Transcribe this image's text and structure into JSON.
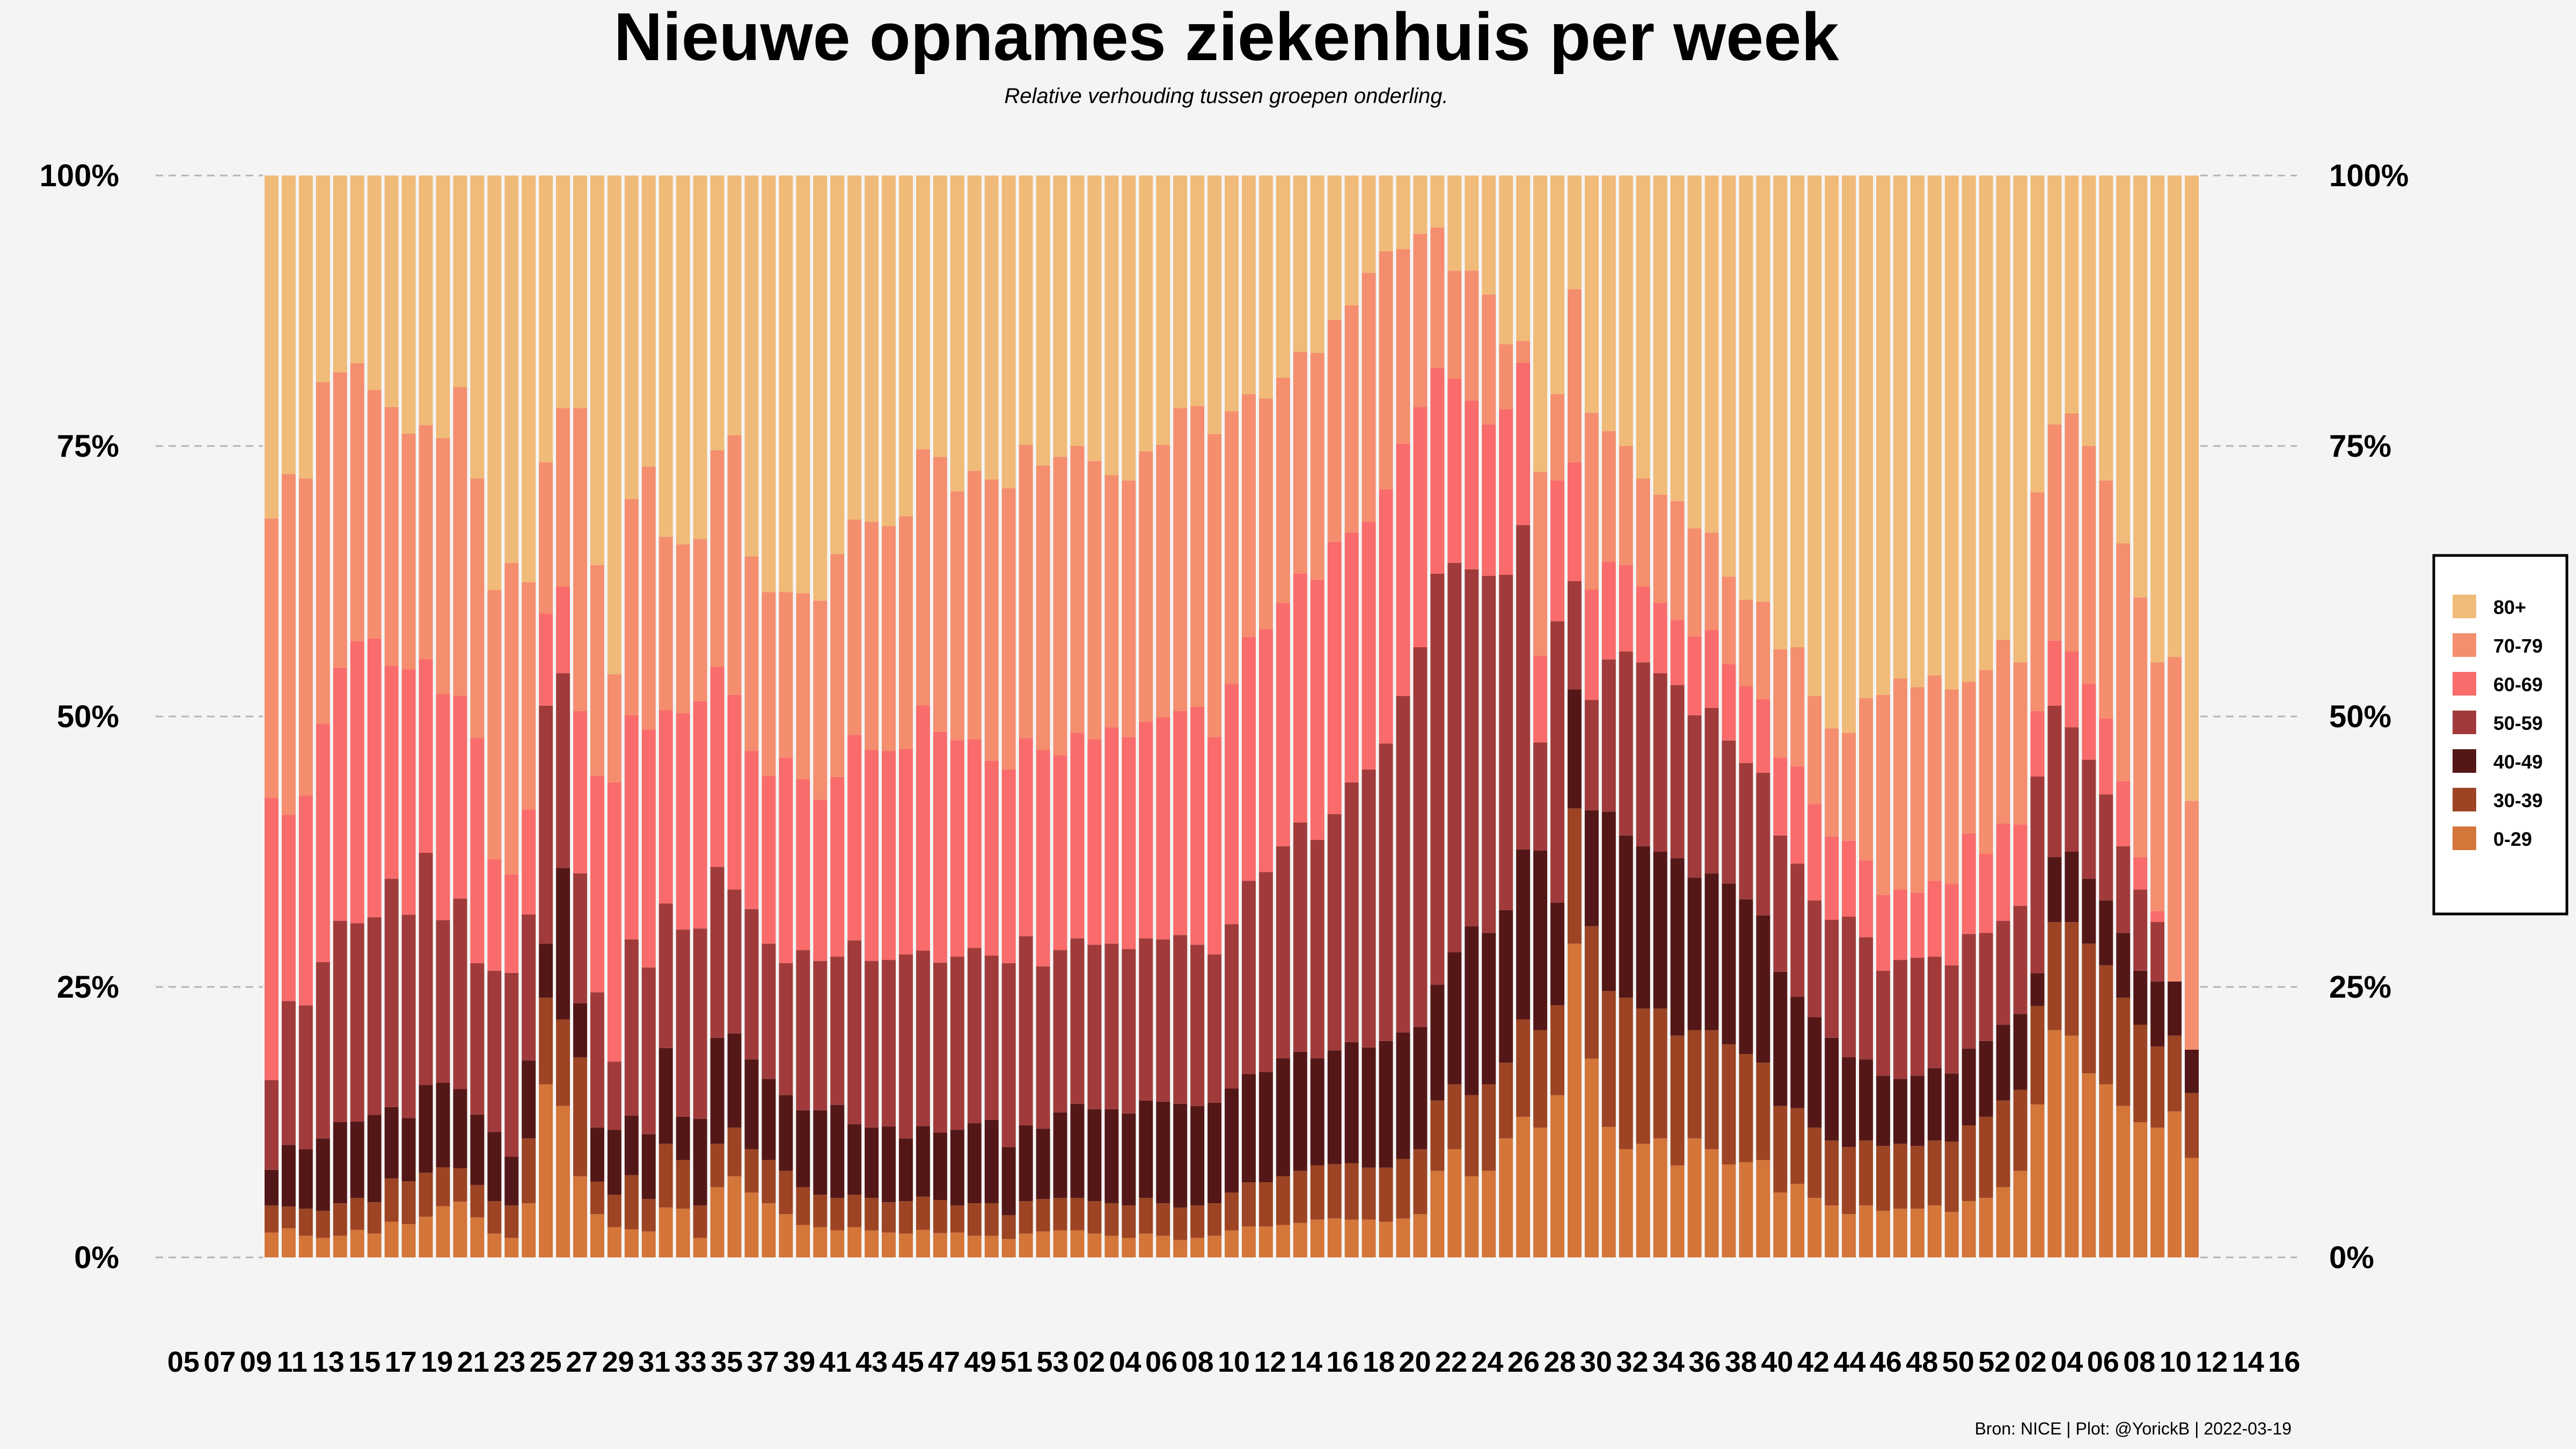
{
  "chart_data": {
    "type": "bar",
    "stacked": true,
    "normalized": true,
    "title": "Nieuwe opnames ziekenhuis per week",
    "subtitle": "Relative verhouding tussen groepen onderling.",
    "caption": "Bron: NICE | Plot: @YorickB |  2022-03-19",
    "ylim": [
      0,
      1
    ],
    "y_ticks": [
      "0%",
      "25%",
      "50%",
      "75%",
      "100%"
    ],
    "y_tick_values": [
      0,
      0.25,
      0.5,
      0.75,
      1.0
    ],
    "legend_position": "right",
    "grid": "horizontal dashed",
    "x_tick_labels": [
      "05",
      "07",
      "09",
      "11",
      "13",
      "15",
      "17",
      "19",
      "21",
      "23",
      "25",
      "27",
      "29",
      "31",
      "33",
      "35",
      "37",
      "39",
      "41",
      "43",
      "45",
      "47",
      "49",
      "51",
      "53",
      "02",
      "04",
      "06",
      "08",
      "10",
      "12",
      "14",
      "16",
      "18",
      "20",
      "22",
      "24",
      "26",
      "28",
      "30",
      "32",
      "34",
      "36",
      "38",
      "40",
      "42",
      "44",
      "46",
      "48",
      "50",
      "52",
      "02",
      "04",
      "06",
      "08",
      "10",
      "12",
      "14",
      "16"
    ],
    "series": [
      {
        "name": "0-29",
        "color": "#d4753a",
        "values": [
          0.023,
          0.027,
          0.02,
          0.018,
          0.02,
          0.026,
          0.023,
          0.033,
          0.031,
          0.037,
          0.046,
          0.05,
          0.037,
          0.022,
          0.018,
          0.05,
          0.16,
          0.14,
          0.075,
          0.04,
          0.028,
          0.026,
          0.024,
          0.047,
          0.045,
          0.018,
          0.065,
          0.075,
          0.06,
          0.05,
          0.04,
          0.03,
          0.028,
          0.025,
          0.028,
          0.025,
          0.023,
          0.022,
          0.025,
          0.022,
          0.023,
          0.02,
          0.02,
          0.017,
          0.022,
          0.024,
          0.025,
          0.025,
          0.022,
          0.02,
          0.018,
          0.022,
          0.02,
          0.016,
          0.018,
          0.02,
          0.025,
          0.028,
          0.028,
          0.03,
          0.032,
          0.035,
          0.036,
          0.035,
          0.035,
          0.033,
          0.036,
          0.04,
          0.08,
          0.1,
          0.075,
          0.08,
          0.11,
          0.13,
          0.12,
          0.15,
          0.29,
          0.18,
          0.12,
          0.1,
          0.105,
          0.11,
          0.085,
          0.11,
          0.1,
          0.085,
          0.088,
          0.09,
          0.06,
          0.068,
          0.055,
          0.048,
          0.04,
          0.048,
          0.043,
          0.045,
          0.045,
          0.048,
          0.042,
          0.052,
          0.055,
          0.065,
          0.08,
          0.14,
          0.21,
          0.205,
          0.17,
          0.16,
          0.14,
          0.125,
          0.12,
          0.135,
          0.092
        ]
      },
      {
        "name": "30-39",
        "color": "#9c4423",
        "values": [
          0.025,
          0.02,
          0.025,
          0.025,
          0.03,
          0.03,
          0.03,
          0.04,
          0.04,
          0.04,
          0.035,
          0.03,
          0.03,
          0.03,
          0.03,
          0.06,
          0.08,
          0.08,
          0.11,
          0.03,
          0.03,
          0.05,
          0.03,
          0.06,
          0.045,
          0.03,
          0.04,
          0.045,
          0.04,
          0.04,
          0.04,
          0.035,
          0.03,
          0.03,
          0.03,
          0.03,
          0.028,
          0.03,
          0.03,
          0.03,
          0.025,
          0.03,
          0.03,
          0.022,
          0.03,
          0.03,
          0.03,
          0.03,
          0.03,
          0.03,
          0.03,
          0.033,
          0.03,
          0.03,
          0.03,
          0.03,
          0.035,
          0.04,
          0.04,
          0.045,
          0.048,
          0.05,
          0.05,
          0.052,
          0.048,
          0.05,
          0.055,
          0.06,
          0.065,
          0.06,
          0.075,
          0.08,
          0.07,
          0.09,
          0.09,
          0.083,
          0.125,
          0.12,
          0.125,
          0.14,
          0.125,
          0.12,
          0.12,
          0.1,
          0.11,
          0.11,
          0.1,
          0.09,
          0.08,
          0.07,
          0.065,
          0.06,
          0.062,
          0.06,
          0.06,
          0.06,
          0.058,
          0.06,
          0.065,
          0.07,
          0.075,
          0.08,
          0.075,
          0.09,
          0.1,
          0.105,
          0.12,
          0.11,
          0.1,
          0.09,
          0.075,
          0.07,
          0.06
        ]
      },
      {
        "name": "40-49",
        "color": "#541717",
        "values": [
          0.033,
          0.057,
          0.055,
          0.067,
          0.075,
          0.072,
          0.084,
          0.066,
          0.059,
          0.08,
          0.076,
          0.071,
          0.065,
          0.064,
          0.045,
          0.072,
          0.05,
          0.14,
          0.05,
          0.05,
          0.06,
          0.055,
          0.06,
          0.09,
          0.04,
          0.08,
          0.098,
          0.087,
          0.083,
          0.075,
          0.07,
          0.071,
          0.078,
          0.086,
          0.065,
          0.065,
          0.07,
          0.058,
          0.064,
          0.061,
          0.07,
          0.074,
          0.077,
          0.063,
          0.07,
          0.065,
          0.079,
          0.087,
          0.085,
          0.087,
          0.085,
          0.09,
          0.094,
          0.096,
          0.092,
          0.093,
          0.096,
          0.098,
          0.1,
          0.109,
          0.11,
          0.099,
          0.105,
          0.112,
          0.111,
          0.117,
          0.117,
          0.113,
          0.107,
          0.122,
          0.156,
          0.14,
          0.141,
          0.157,
          0.166,
          0.095,
          0.11,
          0.105,
          0.165,
          0.15,
          0.15,
          0.145,
          0.164,
          0.141,
          0.145,
          0.147,
          0.143,
          0.136,
          0.124,
          0.103,
          0.102,
          0.095,
          0.083,
          0.075,
          0.065,
          0.06,
          0.065,
          0.067,
          0.063,
          0.071,
          0.07,
          0.07,
          0.07,
          0.03,
          0.06,
          0.065,
          0.06,
          0.06,
          0.06,
          0.05,
          0.06,
          0.05,
          0.04
        ]
      },
      {
        "name": "50-59",
        "color": "#a13b3b",
        "values": [
          0.083,
          0.133,
          0.133,
          0.163,
          0.186,
          0.187,
          0.19,
          0.211,
          0.19,
          0.211,
          0.146,
          0.171,
          0.14,
          0.149,
          0.17,
          0.135,
          0.22,
          0.18,
          0.12,
          0.125,
          0.063,
          0.163,
          0.154,
          0.136,
          0.173,
          0.176,
          0.158,
          0.133,
          0.139,
          0.125,
          0.122,
          0.148,
          0.138,
          0.137,
          0.17,
          0.154,
          0.154,
          0.17,
          0.159,
          0.154,
          0.16,
          0.162,
          0.152,
          0.17,
          0.175,
          0.15,
          0.15,
          0.153,
          0.152,
          0.153,
          0.152,
          0.15,
          0.15,
          0.156,
          0.149,
          0.137,
          0.152,
          0.175,
          0.181,
          0.196,
          0.212,
          0.202,
          0.218,
          0.24,
          0.257,
          0.275,
          0.311,
          0.351,
          0.38,
          0.36,
          0.33,
          0.33,
          0.31,
          0.3,
          0.1,
          0.26,
          0.1,
          0.1,
          0.14,
          0.17,
          0.17,
          0.165,
          0.16,
          0.15,
          0.153,
          0.131,
          0.126,
          0.132,
          0.126,
          0.123,
          0.108,
          0.109,
          0.13,
          0.113,
          0.097,
          0.11,
          0.109,
          0.103,
          0.1,
          0.106,
          0.1,
          0.096,
          0.1,
          0.18,
          0.14,
          0.115,
          0.11,
          0.098,
          0.08,
          0.075,
          0.055,
          0.0,
          0.0
        ]
      },
      {
        "name": "60-69",
        "color": "#fa6b6b",
        "values": [
          0.261,
          0.172,
          0.194,
          0.22,
          0.234,
          0.266,
          0.268,
          0.197,
          0.229,
          0.176,
          0.203,
          0.182,
          0.208,
          0.103,
          0.091,
          0.097,
          0.085,
          0.08,
          0.15,
          0.2,
          0.258,
          0.207,
          0.22,
          0.182,
          0.2,
          0.21,
          0.185,
          0.18,
          0.146,
          0.155,
          0.19,
          0.158,
          0.149,
          0.166,
          0.19,
          0.195,
          0.193,
          0.19,
          0.222,
          0.209,
          0.2,
          0.193,
          0.18,
          0.179,
          0.183,
          0.2,
          0.18,
          0.19,
          0.19,
          0.2,
          0.196,
          0.2,
          0.205,
          0.207,
          0.22,
          0.201,
          0.222,
          0.221,
          0.22,
          0.225,
          0.23,
          0.24,
          0.251,
          0.231,
          0.229,
          0.235,
          0.233,
          0.222,
          0.19,
          0.17,
          0.156,
          0.14,
          0.153,
          0.15,
          0.08,
          0.13,
          0.11,
          0.1,
          0.09,
          0.08,
          0.07,
          0.065,
          0.06,
          0.073,
          0.072,
          0.07,
          0.071,
          0.068,
          0.072,
          0.09,
          0.089,
          0.077,
          0.07,
          0.071,
          0.07,
          0.065,
          0.06,
          0.07,
          0.075,
          0.093,
          0.073,
          0.09,
          0.075,
          0.06,
          0.06,
          0.07,
          0.07,
          0.07,
          0.06,
          0.03,
          0.01,
          0.0,
          0.0
        ]
      },
      {
        "name": "70-79",
        "color": "#f48e6e",
        "values": [
          0.258,
          0.315,
          0.293,
          0.316,
          0.273,
          0.262,
          0.239,
          0.239,
          0.22,
          0.213,
          0.23,
          0.277,
          0.24,
          0.249,
          0.288,
          0.21,
          0.14,
          0.165,
          0.28,
          0.195,
          0.1,
          0.2,
          0.243,
          0.163,
          0.156,
          0.15,
          0.2,
          0.24,
          0.18,
          0.17,
          0.153,
          0.172,
          0.184,
          0.206,
          0.199,
          0.211,
          0.208,
          0.215,
          0.232,
          0.249,
          0.23,
          0.248,
          0.26,
          0.26,
          0.271,
          0.263,
          0.276,
          0.265,
          0.257,
          0.233,
          0.237,
          0.25,
          0.252,
          0.28,
          0.278,
          0.28,
          0.252,
          0.22,
          0.209,
          0.208,
          0.205,
          0.21,
          0.205,
          0.21,
          0.23,
          0.22,
          0.18,
          0.16,
          0.13,
          0.1,
          0.12,
          0.12,
          0.06,
          0.02,
          0.17,
          0.08,
          0.16,
          0.16,
          0.12,
          0.11,
          0.1,
          0.1,
          0.11,
          0.1,
          0.09,
          0.08,
          0.08,
          0.09,
          0.1,
          0.11,
          0.1,
          0.1,
          0.1,
          0.15,
          0.185,
          0.195,
          0.19,
          0.19,
          0.18,
          0.14,
          0.17,
          0.17,
          0.15,
          0.2,
          0.2,
          0.22,
          0.22,
          0.22,
          0.22,
          0.24,
          0.23,
          0.3,
          0.23
        ]
      },
      {
        "name": "80+",
        "color": "#f0bb78",
        "values": [
          0.317,
          0.276,
          0.28,
          0.191,
          0.182,
          0.177,
          0.206,
          0.214,
          0.241,
          0.227,
          0.236,
          0.19,
          0.28,
          0.383,
          0.358,
          0.376,
          0.265,
          0.215,
          0.215,
          0.36,
          0.461,
          0.299,
          0.269,
          0.34,
          0.341,
          0.336,
          0.254,
          0.24,
          0.352,
          0.385,
          0.385,
          0.386,
          0.393,
          0.35,
          0.318,
          0.32,
          0.324,
          0.315,
          0.248,
          0.255,
          0.292,
          0.273,
          0.281,
          0.289,
          0.249,
          0.268,
          0.26,
          0.25,
          0.264,
          0.277,
          0.282,
          0.255,
          0.249,
          0.215,
          0.213,
          0.239,
          0.218,
          0.198,
          0.202,
          0.187,
          0.163,
          0.164,
          0.133,
          0.12,
          0.09,
          0.07,
          0.068,
          0.054,
          0.048,
          0.088,
          0.088,
          0.11,
          0.156,
          0.153,
          0.274,
          0.202,
          0.105,
          0.215,
          0.235,
          0.25,
          0.28,
          0.295,
          0.301,
          0.326,
          0.33,
          0.367,
          0.392,
          0.394,
          0.438,
          0.436,
          0.481,
          0.511,
          0.515,
          0.483,
          0.48,
          0.465,
          0.473,
          0.462,
          0.475,
          0.468,
          0.457,
          0.429,
          0.45,
          0.29,
          0.23,
          0.22,
          0.25,
          0.282,
          0.34,
          0.39,
          0.45,
          0.445,
          0.578
        ]
      }
    ]
  }
}
